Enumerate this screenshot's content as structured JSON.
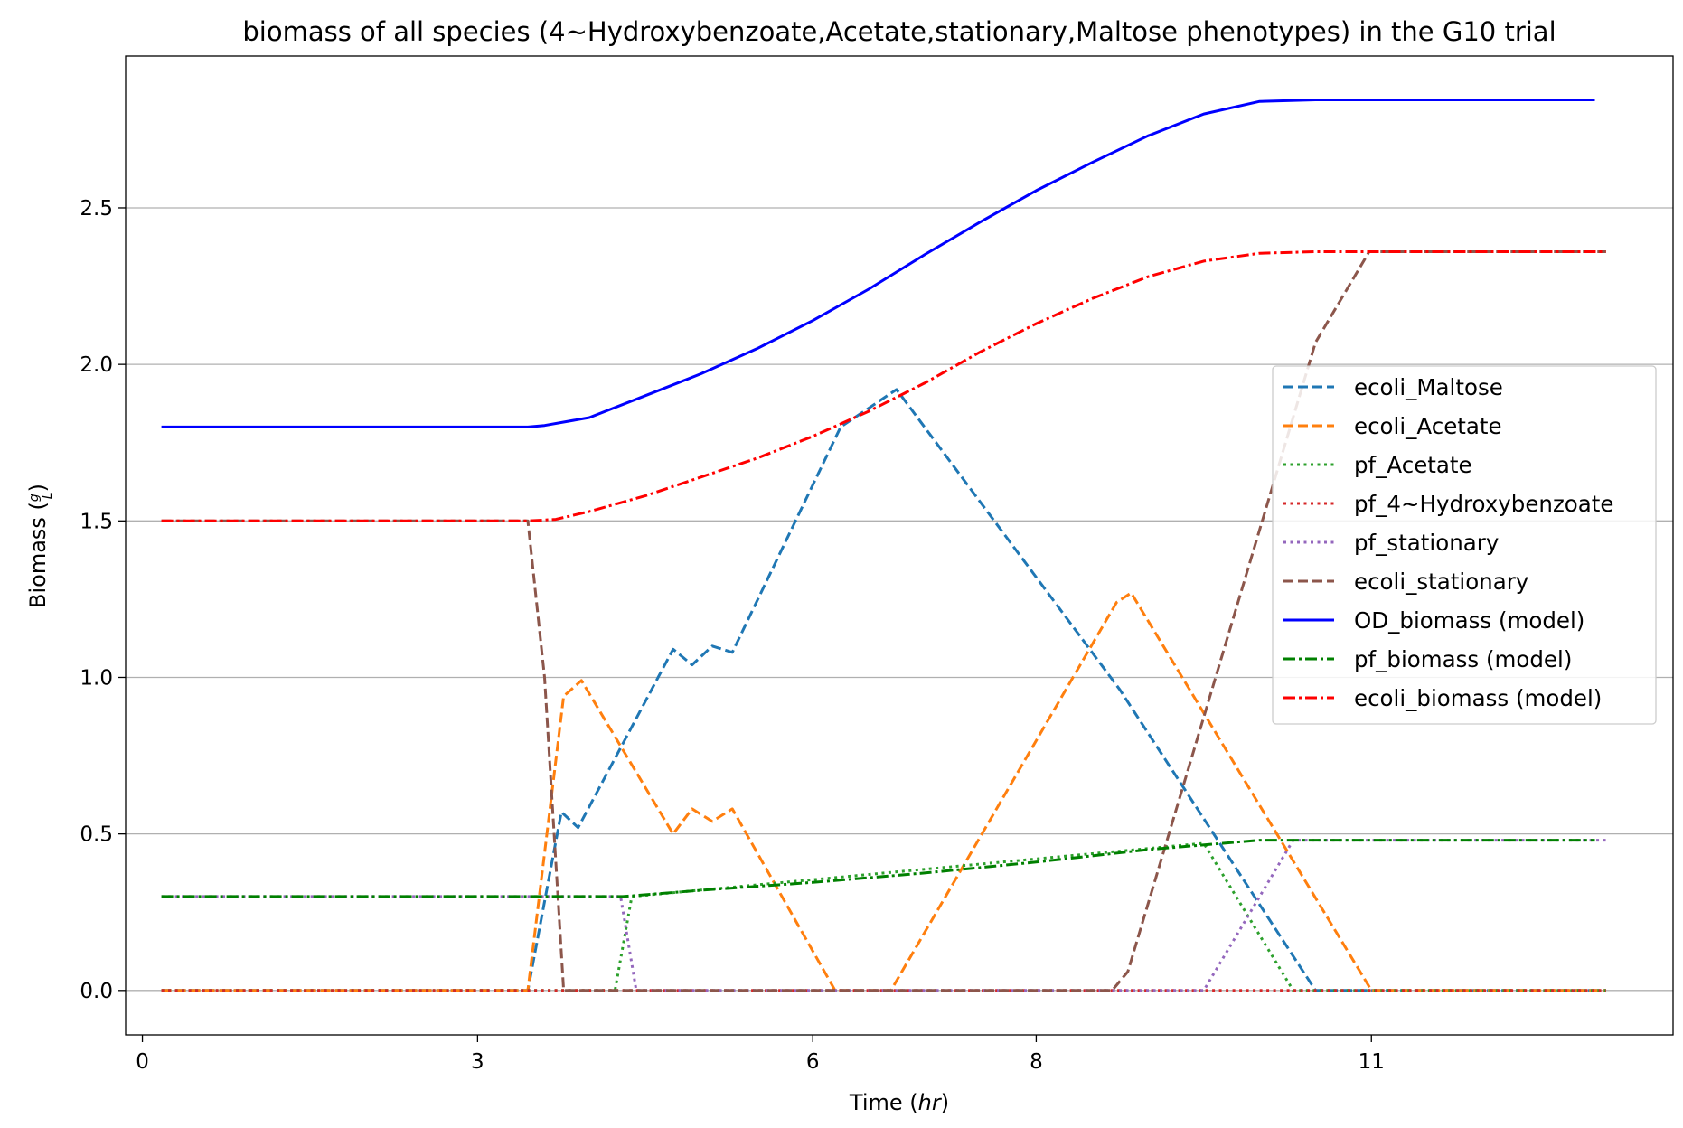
{
  "chart_data": {
    "type": "line",
    "title": "biomass of all species (4~Hydroxybenzoate,Acetate,stationary,Maltose phenotypes) in the G10 trial",
    "xlabel": "Time (",
    "xlabel_var": "hr",
    "xlabel_end": ")",
    "ylabel": "Biomass (",
    "ylabel_num": "g",
    "ylabel_den": "L",
    "ylabel_end": ")",
    "xlim": [
      -0.15,
      13.7
    ],
    "ylim": [
      -0.142,
      2.985
    ],
    "grid": "y",
    "legend_position": "center-right",
    "x_ticks": [
      {
        "value": 0,
        "label": "0"
      },
      {
        "value": 3,
        "label": "3"
      },
      {
        "value": 6,
        "label": "6"
      },
      {
        "value": 8,
        "label": "8"
      },
      {
        "value": 11,
        "label": "11"
      }
    ],
    "y_ticks": [
      {
        "value": 0.0,
        "label": "0.0"
      },
      {
        "value": 0.5,
        "label": "0.5"
      },
      {
        "value": 1.0,
        "label": "1.0"
      },
      {
        "value": 1.5,
        "label": "1.5"
      },
      {
        "value": 2.0,
        "label": "2.0"
      },
      {
        "value": 2.5,
        "label": "2.5"
      }
    ],
    "series": [
      {
        "name": "ecoli_Maltose",
        "color": "#1f77b4",
        "dash": "dashed",
        "x": [
          0.17,
          3.45,
          3.75,
          3.9,
          4.75,
          4.92,
          5.1,
          5.28,
          6.25,
          6.75,
          8.75,
          10.5,
          13.1
        ],
        "y": [
          0,
          0,
          0.57,
          0.52,
          1.09,
          1.04,
          1.1,
          1.08,
          1.8,
          1.92,
          0.96,
          0,
          0
        ]
      },
      {
        "name": "ecoli_Acetate",
        "color": "#ff7f0e",
        "dash": "dashed",
        "x": [
          0.17,
          3.45,
          3.77,
          3.93,
          4.75,
          4.92,
          5.1,
          5.28,
          6.2,
          6.7,
          8.72,
          8.85,
          11.0,
          13.1
        ],
        "y": [
          0,
          0,
          0.94,
          0.99,
          0.5,
          0.58,
          0.54,
          0.58,
          0,
          0,
          1.24,
          1.27,
          0,
          0
        ]
      },
      {
        "name": "pf_Acetate",
        "color": "#2ca02c",
        "dash": "dotted",
        "x": [
          0.17,
          4.23,
          4.38,
          9.5,
          10.3,
          13.1
        ],
        "y": [
          0,
          0,
          0.3,
          0.47,
          0,
          0
        ]
      },
      {
        "name": "pf_4~Hydroxybenzoate",
        "color": "#d62728",
        "dash": "dotted",
        "x": [
          0.17,
          13.1
        ],
        "y": [
          0,
          0
        ]
      },
      {
        "name": "pf_stationary",
        "color": "#9467bd",
        "dash": "dotted",
        "x": [
          0.17,
          4.28,
          4.42,
          9.5,
          10.3,
          13.1
        ],
        "y": [
          0.3,
          0.3,
          0,
          0,
          0.48,
          0.48
        ]
      },
      {
        "name": "ecoli_stationary",
        "color": "#8c564b",
        "dash": "dashed",
        "x": [
          0.17,
          3.45,
          3.6,
          3.77,
          8.68,
          8.82,
          10.5,
          10.98,
          13.1
        ],
        "y": [
          1.5,
          1.5,
          1.0,
          0,
          0,
          0.06,
          2.07,
          2.36,
          2.36
        ]
      },
      {
        "name": "OD_biomass (model)",
        "color": "#0000ff",
        "dash": "solid",
        "x": [
          0.17,
          3.45,
          3.6,
          4.0,
          4.5,
          5.0,
          5.5,
          6.0,
          6.5,
          7.0,
          7.5,
          8.0,
          8.5,
          9.0,
          9.5,
          10.0,
          10.5,
          13.0
        ],
        "y": [
          1.8,
          1.8,
          1.805,
          1.83,
          1.9,
          1.97,
          2.05,
          2.14,
          2.24,
          2.35,
          2.455,
          2.555,
          2.645,
          2.73,
          2.8,
          2.84,
          2.845,
          2.845
        ]
      },
      {
        "name": "pf_biomass (model)",
        "color": "#008000",
        "dash": "dashdot",
        "x": [
          0.17,
          4.3,
          5.0,
          6.0,
          7.0,
          8.0,
          9.0,
          10.0,
          10.5,
          13.0
        ],
        "y": [
          0.3,
          0.3,
          0.32,
          0.345,
          0.375,
          0.41,
          0.45,
          0.48,
          0.48,
          0.48
        ]
      },
      {
        "name": "ecoli_biomass (model)",
        "color": "#ff0000",
        "dash": "dashdot",
        "x": [
          0.17,
          3.45,
          3.7,
          4.0,
          4.5,
          5.0,
          5.5,
          6.0,
          6.5,
          7.0,
          7.5,
          8.0,
          8.5,
          9.0,
          9.5,
          10.0,
          10.5,
          13.1
        ],
        "y": [
          1.5,
          1.5,
          1.505,
          1.53,
          1.58,
          1.64,
          1.7,
          1.77,
          1.85,
          1.94,
          2.04,
          2.13,
          2.21,
          2.28,
          2.33,
          2.355,
          2.36,
          2.36
        ]
      }
    ]
  }
}
